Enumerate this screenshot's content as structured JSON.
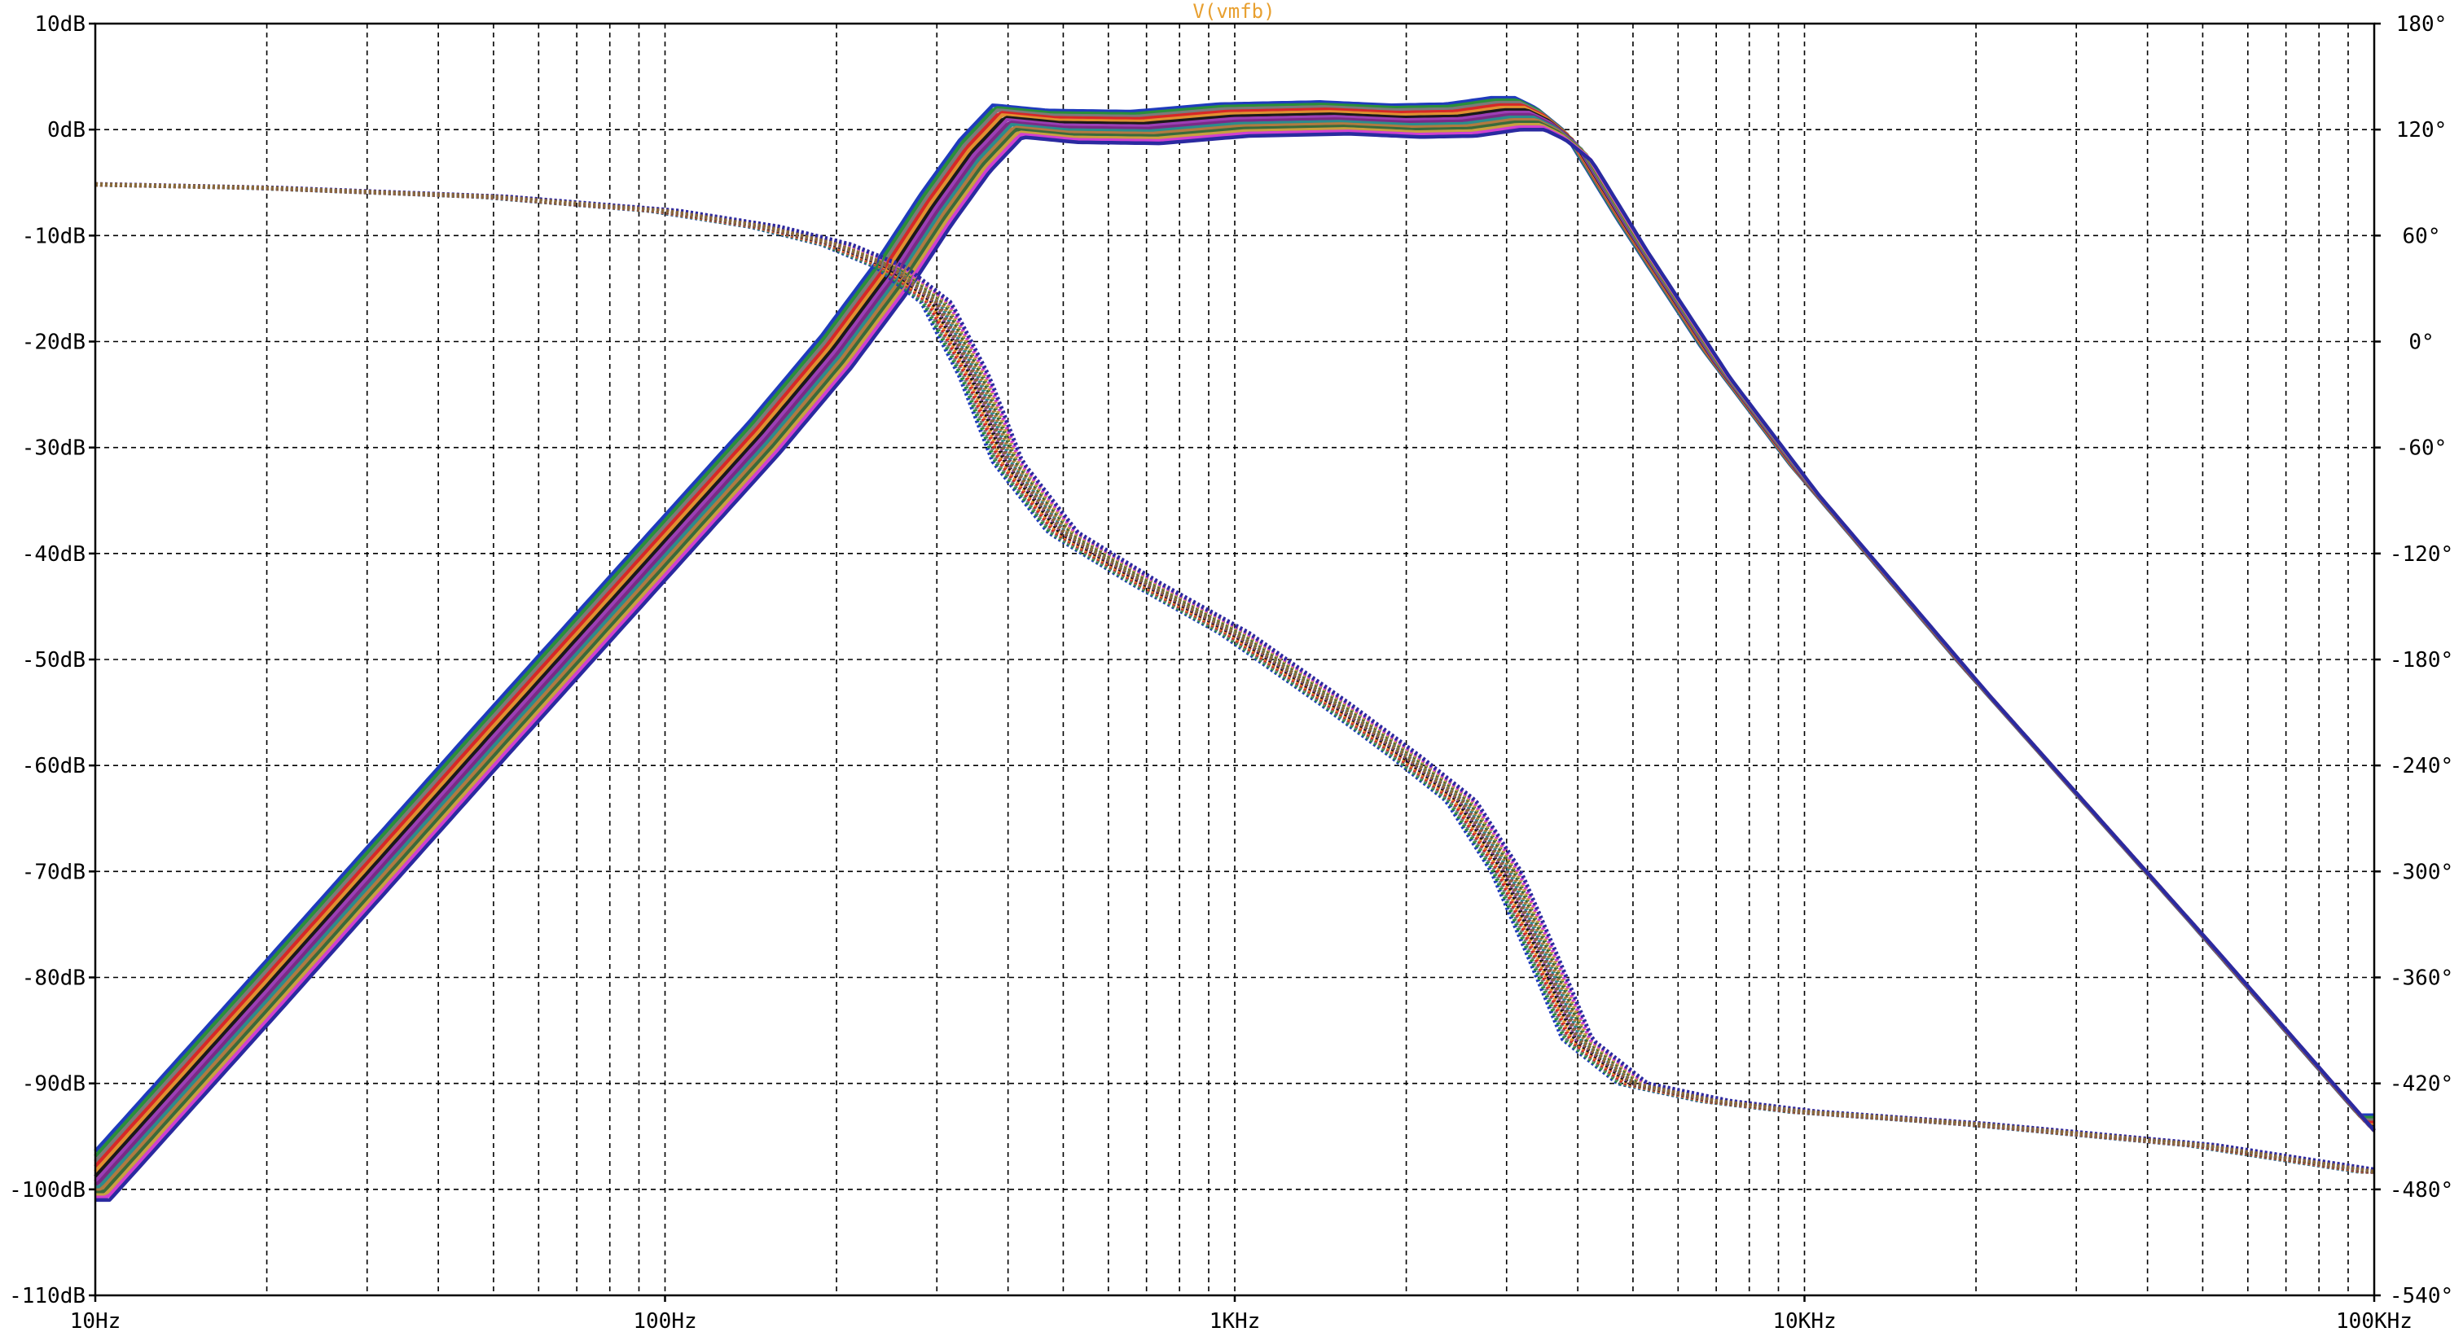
{
  "window": {
    "trace_name": "V(vmfb)"
  },
  "chart_data": {
    "type": "line",
    "title": "V(vmfb)",
    "x_scale": "log",
    "xlim_hz": [
      10,
      100000
    ],
    "x_tick_labels": [
      "10Hz",
      "100Hz",
      "1KHz",
      "10KHz",
      "100KHz"
    ],
    "x_tick_values_hz": [
      10,
      100,
      1000,
      10000,
      100000
    ],
    "ylim_db": [
      -110,
      10
    ],
    "y_tick_values_db": [
      10,
      0,
      -10,
      -20,
      -30,
      -40,
      -50,
      -60,
      -70,
      -80,
      -90,
      -100,
      -110
    ],
    "y_tick_labels": [
      "10dB",
      "0dB",
      "-10dB",
      "-20dB",
      "-30dB",
      "-40dB",
      "-50dB",
      "-60dB",
      "-70dB",
      "-80dB",
      "-90dB",
      "-100dB",
      "-110dB"
    ],
    "y2lim_deg": [
      -540,
      180
    ],
    "y2_tick_values_deg": [
      180,
      120,
      60,
      0,
      -60,
      -120,
      -180,
      -240,
      -300,
      -360,
      -420,
      -480,
      -540
    ],
    "y2_tick_labels": [
      "180°",
      "120°",
      "60°",
      "0°",
      "-60°",
      "-120°",
      "-180°",
      "-240°",
      "-300°",
      "-360°",
      "-420°",
      "-480°",
      "-540°"
    ],
    "grid": true,
    "magnitude_nominal": {
      "freq_hz": [
        10,
        20,
        50,
        100,
        150,
        200,
        250,
        300,
        350,
        400,
        500,
        700,
        1000,
        1500,
        2000,
        2500,
        3000,
        3300,
        3600,
        4000,
        5000,
        7000,
        10000,
        20000,
        50000,
        100000
      ],
      "db": [
        -99.5,
        -81.5,
        -57.5,
        -39.5,
        -29,
        -21,
        -14,
        -7.5,
        -2.5,
        0.8,
        0.3,
        0.2,
        0.9,
        1.1,
        0.8,
        0.9,
        1.5,
        1.5,
        0.5,
        -1.5,
        -10,
        -22,
        -33,
        -52,
        -76,
        -94.5
      ]
    },
    "phase_nominal": {
      "freq_hz": [
        10,
        20,
        50,
        100,
        150,
        200,
        250,
        300,
        350,
        400,
        500,
        700,
        1000,
        1500,
        2000,
        2500,
        3000,
        3500,
        4000,
        5000,
        7000,
        10000,
        20000,
        50000,
        100000
      ],
      "deg": [
        89,
        87,
        82,
        74,
        65,
        55,
        42,
        22,
        -20,
        -68,
        -108,
        -137,
        -165,
        -205,
        -235,
        -260,
        -300,
        -350,
        -395,
        -420,
        -430,
        -436,
        -443,
        -455,
        -470
      ]
    },
    "spread": {
      "magnitude_db": [
        -1.5,
        1.5
      ],
      "frequency_ratio": [
        0.94,
        1.06
      ]
    },
    "series": [
      {
        "color": "#1f3bbd"
      },
      {
        "color": "#2a8f3a"
      },
      {
        "color": "#7a7a7a"
      },
      {
        "color": "#d62828"
      },
      {
        "color": "#e09030"
      },
      {
        "color": "#1a1a1a"
      },
      {
        "color": "#9b3fb5"
      },
      {
        "color": "#7a2a86"
      },
      {
        "color": "#2c8c8c"
      },
      {
        "color": "#b07a40"
      },
      {
        "color": "#3a6a3a"
      },
      {
        "color": "#c8a040"
      },
      {
        "color": "#d040d0"
      },
      {
        "color": "#2a2aa0"
      }
    ],
    "phase_color": "#8a6a3a"
  }
}
